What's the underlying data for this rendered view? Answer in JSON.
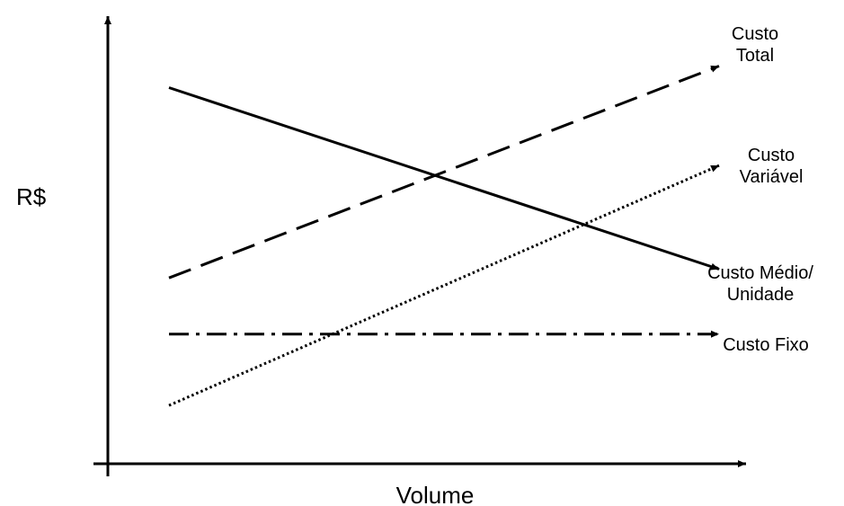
{
  "chart_data": {
    "type": "line",
    "title": "",
    "xlabel": "Volume",
    "ylabel": "R$",
    "xlim": [
      0,
      10
    ],
    "ylim": [
      0,
      10
    ],
    "grid": false,
    "legend": "none",
    "axis_color": "#000000",
    "series": [
      {
        "key": "total",
        "label_lines": [
          "Custo",
          "Total"
        ],
        "style": "dashed",
        "color": "#000000",
        "x": [
          1,
          10
        ],
        "y": [
          4.3,
          9.2
        ]
      },
      {
        "key": "variavel",
        "label_lines": [
          "Custo",
          "Variável"
        ],
        "style": "dotted",
        "color": "#000000",
        "x": [
          1,
          10
        ],
        "y": [
          1.35,
          6.9
        ]
      },
      {
        "key": "medio",
        "label_lines": [
          "Custo Médio/",
          "Unidade"
        ],
        "style": "solid",
        "color": "#000000",
        "x": [
          1,
          10
        ],
        "y": [
          8.7,
          4.5
        ]
      },
      {
        "key": "fixo",
        "label_lines": [
          "Custo Fixo"
        ],
        "style": "dashdot",
        "color": "#000000",
        "x": [
          1,
          10
        ],
        "y": [
          3.0,
          3.0
        ]
      }
    ]
  }
}
